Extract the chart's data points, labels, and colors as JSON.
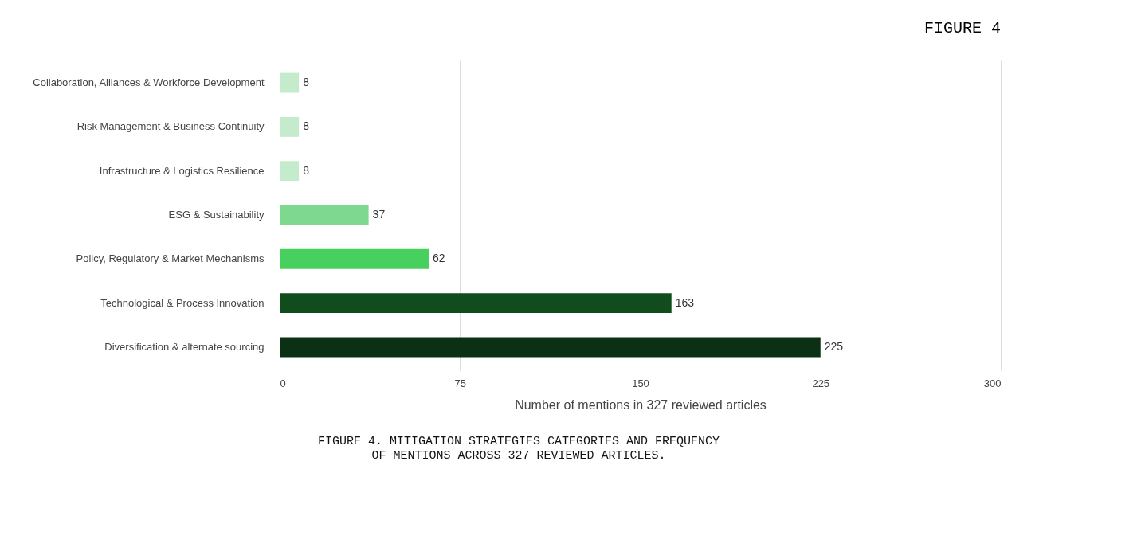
{
  "chart_data": {
    "type": "bar",
    "orientation": "horizontal",
    "title": "FIGURE 4",
    "categories": [
      "Collaboration, Alliances & Workforce Development",
      "Risk Management & Business Continuity",
      "Infrastructure & Logistics Resilience",
      "ESG & Sustainability",
      "Policy, Regulatory & Market Mechanisms",
      "Technological & Process Innovation",
      "Diversification & alternate sourcing"
    ],
    "values": [
      8,
      8,
      8,
      37,
      62,
      163,
      225
    ],
    "colors": [
      "#c4ebcb",
      "#c4ebcb",
      "#c4ebcb",
      "#7ed88f",
      "#48d05e",
      "#114d1c",
      "#0b3014"
    ],
    "xlim": [
      0,
      300
    ],
    "xticks": [
      0,
      75,
      150,
      225,
      300
    ],
    "xlabel": "Number of mentions in 327 reviewed articles",
    "grid": "x",
    "data_labels": true,
    "annotations": [
      "FIGURE 4. MITIGATION STRATEGIES CATEGORIES AND FREQUENCY OF MENTIONS ACROSS 327 REVIEWED ARTICLES."
    ]
  }
}
